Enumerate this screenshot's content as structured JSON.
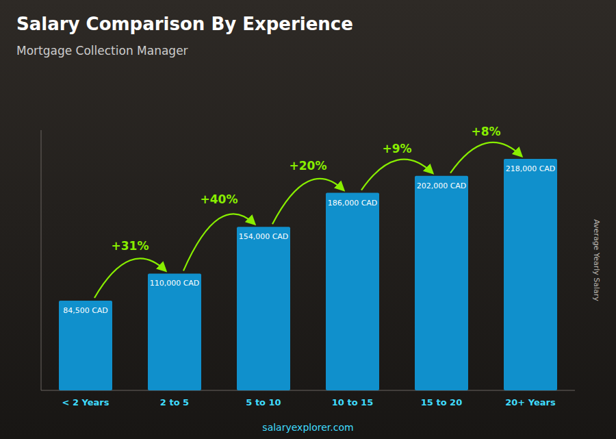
{
  "chart_data": {
    "type": "bar",
    "title": "Salary Comparison By Experience",
    "subtitle": "Mortgage Collection Manager",
    "ylabel": "Average Yearly Salary",
    "footer": "salaryexplorer.com",
    "categories": [
      "< 2 Years",
      "2 to 5",
      "5 to 10",
      "10 to 15",
      "15 to 20",
      "20+ Years"
    ],
    "values": [
      84500,
      110000,
      154000,
      186000,
      202000,
      218000
    ],
    "value_labels": [
      "84,500 CAD",
      "110,000 CAD",
      "154,000 CAD",
      "186,000 CAD",
      "202,000 CAD",
      "218,000 CAD"
    ],
    "data_labels": true,
    "annotations": [
      "+31%",
      "+40%",
      "+20%",
      "+9%",
      "+8%"
    ],
    "color": "#1090cc",
    "ylim": [
      0,
      245000
    ],
    "tick_labels": "x",
    "grid": false
  }
}
